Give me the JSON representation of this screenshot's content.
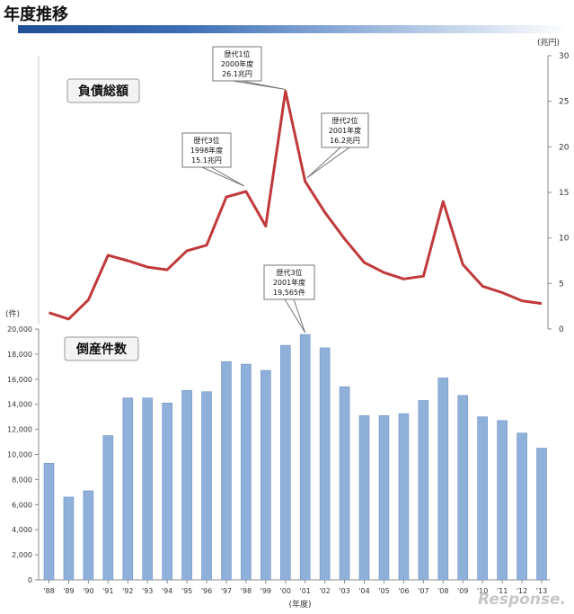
{
  "page_title": "年度推移",
  "colors": {
    "line": "#c0393b",
    "bar": "#8fb0d9",
    "bar_stroke": "#6f93c4",
    "title_bar": "#2a5aa6"
  },
  "chart_data": [
    {
      "type": "line",
      "title": "負債総額",
      "unit_label": "(兆円)",
      "ylim": [
        0,
        30
      ],
      "y_ticks": [
        0,
        5,
        10,
        15,
        20,
        25,
        30
      ],
      "grid": false,
      "series": [
        {
          "values": [
            1.8,
            1.1,
            3.2,
            8.1,
            7.5,
            6.8,
            6.5,
            8.6,
            9.2,
            14.5,
            15.1,
            11.3,
            26.1,
            16.2,
            12.8,
            9.9,
            7.3,
            6.2,
            5.5,
            5.8,
            14.0,
            7.1,
            4.7,
            4.0,
            3.1,
            2.8
          ]
        }
      ],
      "annotations": [
        {
          "label": [
            "歴代3位",
            "1998年度",
            "15.1兆円"
          ],
          "year": "'98",
          "value": 15.1
        },
        {
          "label": [
            "歴代1位",
            "2000年度",
            "26.1兆円"
          ],
          "year": "'00",
          "value": 26.1
        },
        {
          "label": [
            "歴代2位",
            "2001年度",
            "16.2兆円"
          ],
          "year": "'01",
          "value": 16.2
        }
      ]
    },
    {
      "type": "bar",
      "title": "倒産件数",
      "unit_label": "(件)",
      "ylim": [
        0,
        20000
      ],
      "y_ticks": [
        "0",
        "2,000",
        "4,000",
        "6,000",
        "8,000",
        "10,000",
        "12,000",
        "14,000",
        "16,000",
        "18,000",
        "20,000"
      ],
      "xlabel": "(年度)",
      "grid": false,
      "categories": [
        "'88",
        "'89",
        "'90",
        "'91",
        "'92",
        "'93",
        "'94",
        "'95",
        "'96",
        "'97",
        "'98",
        "'99",
        "'00",
        "'01",
        "'02",
        "'03",
        "'04",
        "'05",
        "'06",
        "'07",
        "'08",
        "'09",
        "'10",
        "'11",
        "'12",
        "'13"
      ],
      "values": [
        9300,
        6600,
        7100,
        11500,
        14500,
        14500,
        14100,
        15100,
        15000,
        17400,
        17200,
        16700,
        18700,
        19565,
        18500,
        15400,
        13100,
        13100,
        13250,
        14300,
        16100,
        14700,
        13000,
        12700,
        11700,
        10500
      ],
      "annotations": [
        {
          "label": [
            "歴代3位",
            "2001年度",
            "19,565件"
          ],
          "year": "'01",
          "value": 19565
        }
      ]
    }
  ],
  "watermark": "Response."
}
